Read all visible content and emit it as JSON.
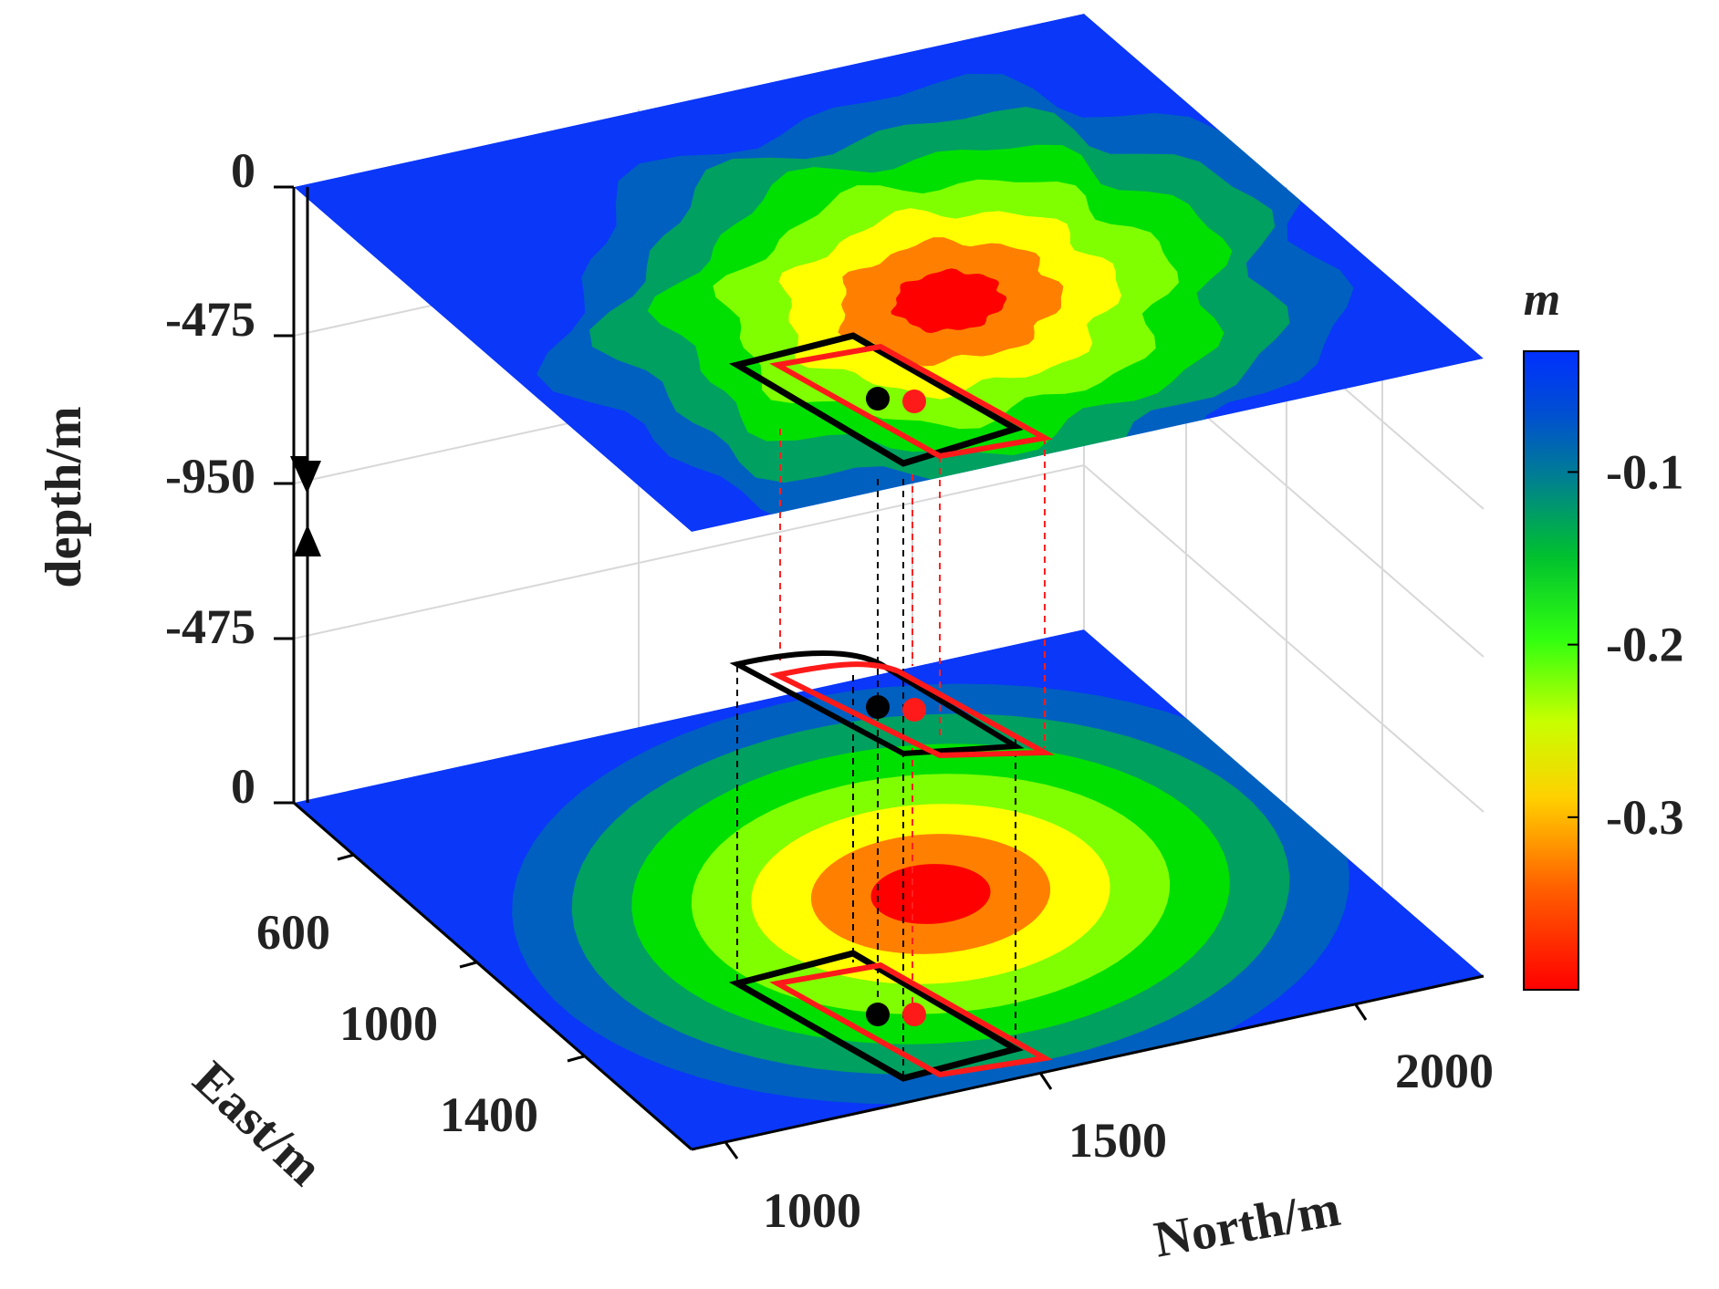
{
  "chart_data": {
    "type": "heatmap",
    "title": "",
    "axes": {
      "north": {
        "label": "North/m",
        "ticks": [
          "1000",
          "1500",
          "2000"
        ]
      },
      "east": {
        "label": "East/m",
        "ticks": [
          "600",
          "1000",
          "1400"
        ]
      },
      "depth": {
        "label": "depth/m",
        "ticks": [
          "0",
          "-475",
          "-950",
          "-475",
          "0"
        ]
      }
    },
    "colorbar": {
      "label": "m",
      "ticks": [
        {
          "label": "-0.1",
          "value": -0.1
        },
        {
          "label": "-0.2",
          "value": -0.2
        },
        {
          "label": "-0.3",
          "value": -0.3
        }
      ],
      "range": [
        -0.4,
        -0.03
      ],
      "colormap": [
        "#ff0000",
        "#ff8000",
        "#ffff00",
        "#80ff00",
        "#00e000",
        "#00a060",
        "#0060c0",
        "#0030ff"
      ]
    },
    "layers": [
      {
        "name": "top",
        "kind": "noisy",
        "peak_value": -0.4,
        "background_value": -0.03
      },
      {
        "name": "bottom",
        "kind": "smooth",
        "peak_value": -0.4,
        "background_value": -0.03
      }
    ],
    "fault_models": [
      {
        "name": "black",
        "color": "#000000"
      },
      {
        "name": "red",
        "color": "#ff1a1a"
      }
    ]
  }
}
